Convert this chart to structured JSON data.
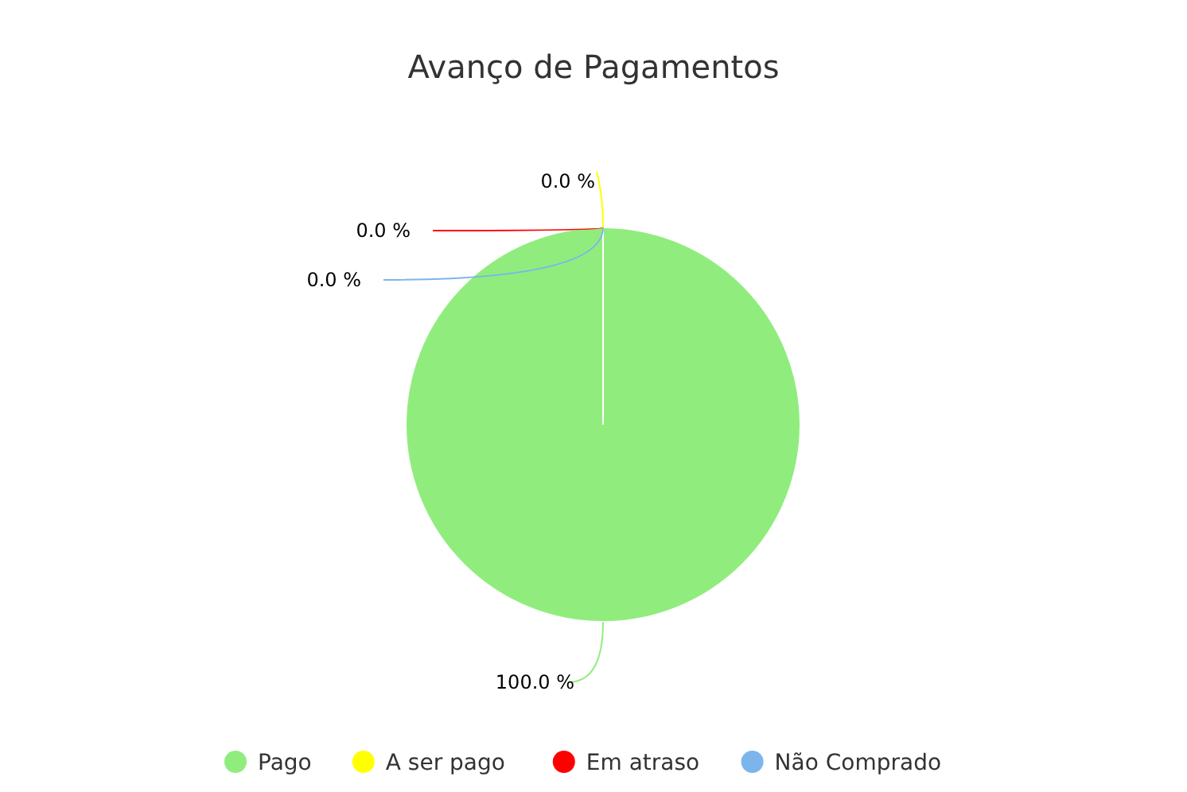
{
  "chart_data": {
    "type": "pie",
    "title": "Avanço de Pagamentos",
    "categories": [
      "Pago",
      "A ser pago",
      "Em atraso",
      "Não Comprado"
    ],
    "values": [
      100,
      0,
      0,
      0
    ],
    "colors": [
      "#90ed7d",
      "#ffff00",
      "#ff0000",
      "#7cb5ec"
    ],
    "value_labels": [
      "100.0 %",
      "0.0 %",
      "0.0 %",
      "0.0 %"
    ],
    "legend": "bottom"
  }
}
